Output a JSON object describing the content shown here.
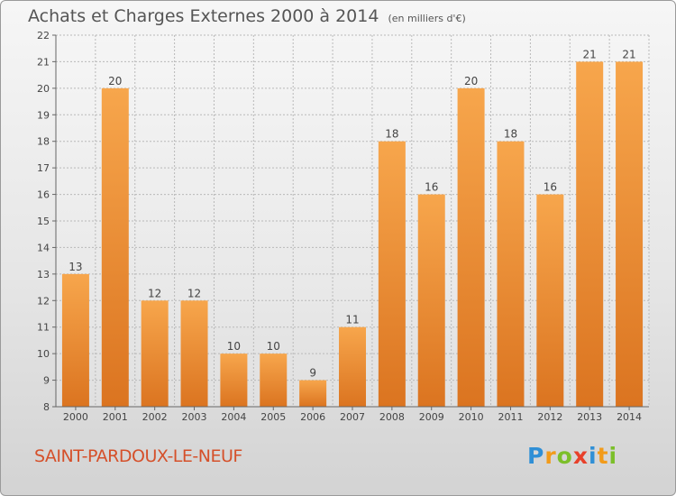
{
  "header": {
    "title": "Achats et Charges Externes 2000 à 2014",
    "subtitle": "(en milliers d'€)"
  },
  "footer": {
    "commune": "SAINT-PARDOUX-LE-NEUF",
    "logo_letters": [
      "P",
      "r",
      "o",
      "x",
      "i",
      "t",
      "i"
    ],
    "logo_colors": [
      "#2f8fd6",
      "#f29b1a",
      "#7cbf2a",
      "#e8402a",
      "#2f8fd6",
      "#f29b1a",
      "#7cbf2a"
    ]
  },
  "chart_data": {
    "type": "bar",
    "title": "Achats et Charges Externes 2000 à 2014",
    "subtitle": "(en milliers d'€)",
    "categories": [
      "2000",
      "2001",
      "2002",
      "2003",
      "2004",
      "2005",
      "2006",
      "2007",
      "2008",
      "2009",
      "2010",
      "2011",
      "2012",
      "2013",
      "2014"
    ],
    "values": [
      13,
      20,
      12,
      12,
      10,
      10,
      9,
      11,
      18,
      16,
      20,
      18,
      16,
      21,
      21
    ],
    "ylim": [
      8,
      22
    ],
    "yticks": [
      8,
      9,
      10,
      11,
      12,
      13,
      14,
      15,
      16,
      17,
      18,
      19,
      20,
      21,
      22
    ],
    "grid": true,
    "colors": {
      "bar_light": "#f7a64c",
      "bar_dark": "#db7420"
    }
  }
}
